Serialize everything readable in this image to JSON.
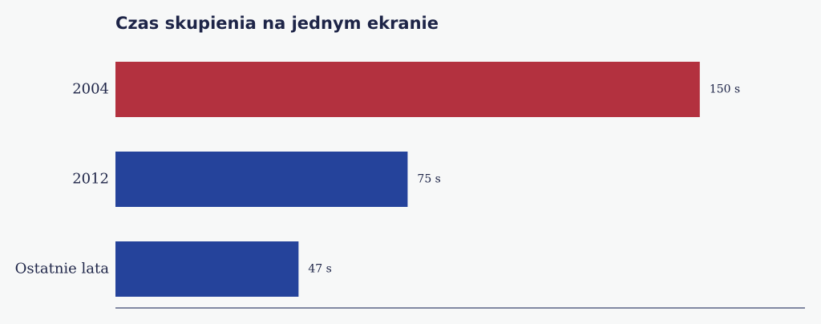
{
  "chart_data": {
    "type": "hbar",
    "title": "Czas skupienia na jednym ekranie",
    "categories": [
      "2004",
      "2012",
      "Ostatnie lata"
    ],
    "values": [
      150,
      75,
      47
    ],
    "value_labels": [
      "150 s",
      "75 s",
      "47 s"
    ],
    "colors": [
      "#b3313f",
      "#25439b",
      "#25439b"
    ],
    "xlim": [
      0,
      177
    ]
  }
}
